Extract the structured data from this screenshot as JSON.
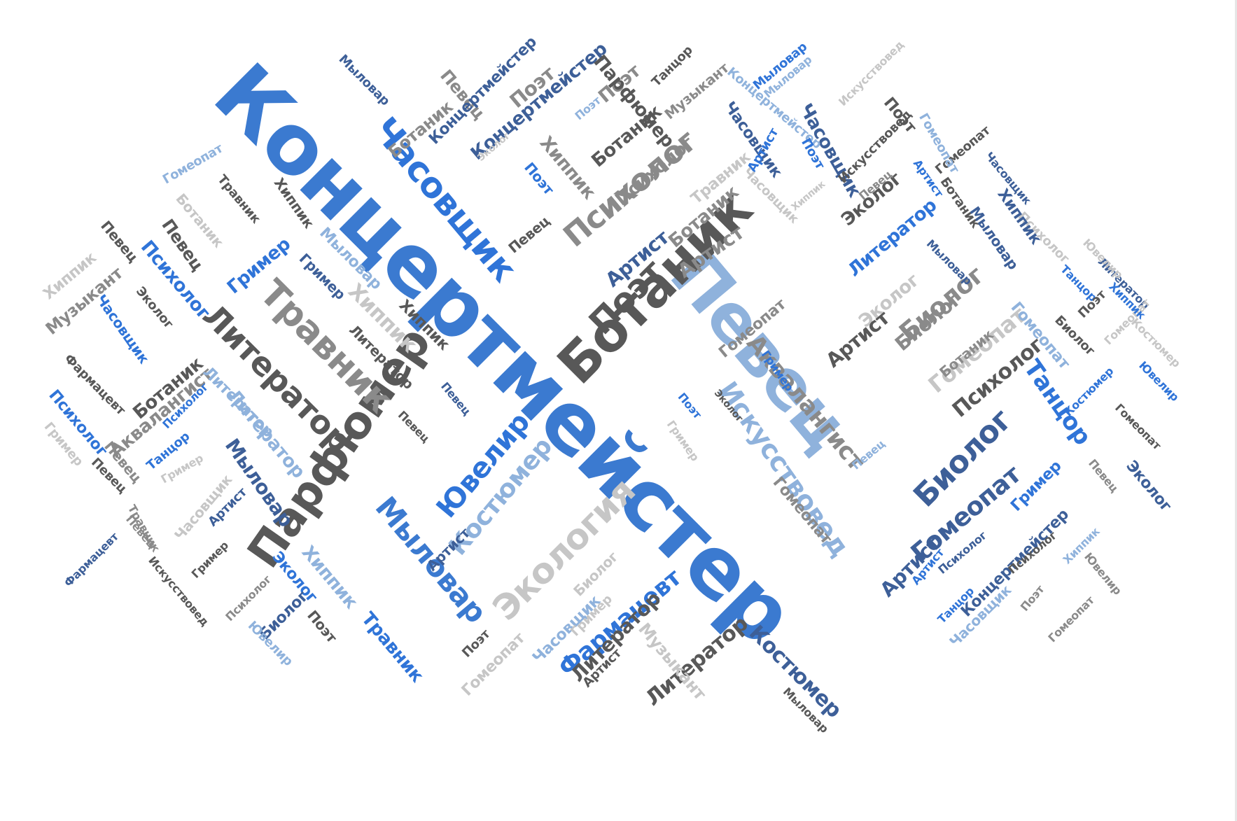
{
  "words": [
    {
      "text": "Концертмейстер",
      "color": "blue"
    },
    {
      "text": "Певец",
      "color": "lightblue"
    },
    {
      "text": "Ботаник",
      "color": "dark"
    },
    {
      "text": "Парфюмер",
      "color": "dark"
    },
    {
      "text": "Часовщик",
      "color": "brightblue"
    },
    {
      "text": "Травник",
      "color": "gray"
    },
    {
      "text": "Литератор",
      "color": "dark"
    },
    {
      "text": "Психолог",
      "color": "gray"
    },
    {
      "text": "Поэт",
      "color": "dark"
    },
    {
      "text": "Ювелир",
      "color": "brightblue"
    },
    {
      "text": "Костюмер",
      "color": "lightblue"
    },
    {
      "text": "Мыловар",
      "color": "blue"
    },
    {
      "text": "Экология",
      "color": "lightgray"
    },
    {
      "text": "Биолог",
      "color": "navy"
    },
    {
      "text": "Искусствовед",
      "color": "lightblue"
    },
    {
      "text": "Аквалангист",
      "color": "gray"
    },
    {
      "text": "Гомеопат",
      "color": "navy"
    },
    {
      "text": "Танцор",
      "color": "brightblue"
    },
    {
      "text": "Биолог",
      "color": "gray"
    },
    {
      "text": "Гомеопат",
      "color": "lightgray"
    },
    {
      "text": "Психолог",
      "color": "dark"
    },
    {
      "text": "Фармацевт",
      "color": "brightblue"
    },
    {
      "text": "Литератор",
      "color": "dark"
    },
    {
      "text": "Костюмер",
      "color": "navy"
    },
    {
      "text": "Концертмейстер",
      "color": "navy"
    },
    {
      "text": "Часовщик",
      "color": "navy"
    },
    {
      "text": "Артист",
      "color": "navy"
    },
    {
      "text": "Артист",
      "color": "gray"
    },
    {
      "text": "Ботаник",
      "color": "gray"
    },
    {
      "text": "Ботаник",
      "color": "dark"
    },
    {
      "text": "Поэт",
      "color": "gray"
    },
    {
      "text": "Хиппик",
      "color": "gray"
    },
    {
      "text": "Эколог",
      "color": "dark"
    },
    {
      "text": "Литератор",
      "color": "brightblue"
    },
    {
      "text": "Эколог",
      "color": "lightgray"
    },
    {
      "text": "Биолог",
      "color": "gray"
    },
    {
      "text": "Гомеопат",
      "color": "gray"
    },
    {
      "text": "Литератор",
      "color": "lightblue"
    },
    {
      "text": "Мыловар",
      "color": "navy"
    },
    {
      "text": "Хиппик",
      "color": "lightgray"
    },
    {
      "text": "Психолог",
      "color": "brightblue"
    },
    {
      "text": "Гример",
      "color": "brightblue"
    },
    {
      "text": "Певец",
      "color": "dark"
    },
    {
      "text": "Хиппик",
      "color": "lightgray"
    },
    {
      "text": "Музыкант",
      "color": "gray"
    },
    {
      "text": "Ботаник",
      "color": "dark"
    },
    {
      "text": "Аквалангист",
      "color": "gray"
    },
    {
      "text": "Психолог",
      "color": "brightblue"
    },
    {
      "text": "Певец",
      "color": "dark"
    },
    {
      "text": "Часовщик",
      "color": "brightblue"
    },
    {
      "text": "Фармацевт",
      "color": "dark"
    },
    {
      "text": "Эколог",
      "color": "dark"
    },
    {
      "text": "Певец",
      "color": "gray"
    },
    {
      "text": "Ботаник",
      "color": "lightgray"
    },
    {
      "text": "Травник",
      "color": "dark"
    },
    {
      "text": "Гомеопат",
      "color": "lightblue"
    },
    {
      "text": "Хиппик",
      "color": "dark"
    },
    {
      "text": "Гример",
      "color": "navy"
    },
    {
      "text": "Мыловар",
      "color": "lightblue"
    },
    {
      "text": "Хиппик",
      "color": "dark"
    },
    {
      "text": "Литератор",
      "color": "dark"
    },
    {
      "text": "Мыловар",
      "color": "navy"
    },
    {
      "text": "Мыловар",
      "color": "brightblue"
    },
    {
      "text": "Гример",
      "color": "lightgray"
    },
    {
      "text": "Танцор",
      "color": "brightblue"
    },
    {
      "text": "Психолог",
      "color": "brightblue"
    },
    {
      "text": "Литератор",
      "color": "lightblue"
    },
    {
      "text": "Певец",
      "color": "dark"
    },
    {
      "text": "Гример",
      "color": "lightgray"
    },
    {
      "text": "Часовщик",
      "color": "lightgray"
    },
    {
      "text": "Артист",
      "color": "navy"
    },
    {
      "text": "Певец",
      "color": "gray"
    },
    {
      "text": "Певец",
      "color": "dark"
    },
    {
      "text": "Певец",
      "color": "navy"
    },
    {
      "text": "Травник",
      "color": "gray"
    },
    {
      "text": "Гример",
      "color": "dark"
    },
    {
      "text": "Фармацевт",
      "color": "navy"
    },
    {
      "text": "Искусствовед",
      "color": "dark"
    },
    {
      "text": "Эколог",
      "color": "brightblue"
    },
    {
      "text": "Хиппик",
      "color": "lightblue"
    },
    {
      "text": "Психолог",
      "color": "gray"
    },
    {
      "text": "Биолог",
      "color": "navy"
    },
    {
      "text": "Поэт",
      "color": "dark"
    },
    {
      "text": "Ювелир",
      "color": "lightblue"
    },
    {
      "text": "Травник",
      "color": "brightblue"
    },
    {
      "text": "Артист",
      "color": "navy"
    },
    {
      "text": "Биолог",
      "color": "lightgray"
    },
    {
      "text": "Поэт",
      "color": "dark"
    },
    {
      "text": "Гомеопат",
      "color": "lightgray"
    },
    {
      "text": "Часовщик",
      "color": "lightblue"
    },
    {
      "text": "Гример",
      "color": "lightgray"
    },
    {
      "text": "Литератор",
      "color": "dark"
    },
    {
      "text": "Артист",
      "color": "dark"
    },
    {
      "text": "Музыкант",
      "color": "lightgray"
    },
    {
      "text": "Мыловар",
      "color": "dark"
    },
    {
      "text": "Ботаник",
      "color": "gray"
    },
    {
      "text": "Певец",
      "color": "gray"
    },
    {
      "text": "Поэт",
      "color": "gray"
    },
    {
      "text": "Парфюмер",
      "color": "dark"
    },
    {
      "text": "Танцор",
      "color": "dark"
    },
    {
      "text": "Музыкант",
      "color": "gray"
    },
    {
      "text": "Концертмейстер",
      "color": "lightblue"
    },
    {
      "text": "Мыловар",
      "color": "lightblue"
    },
    {
      "text": "Искусствовед",
      "color": "lightgray"
    },
    {
      "text": "Поэт",
      "color": "dark"
    },
    {
      "text": "Часовщик",
      "color": "navy"
    },
    {
      "text": "Поэт",
      "color": "brightblue"
    },
    {
      "text": "Артист",
      "color": "brightblue"
    },
    {
      "text": "Концертмейстер",
      "color": "navy"
    },
    {
      "text": "Поэт",
      "color": "lightblue"
    },
    {
      "text": "Эколог",
      "color": "lightgray"
    },
    {
      "text": "Поэт",
      "color": "brightblue"
    },
    {
      "text": "Хиппик",
      "color": "lightgray"
    },
    {
      "text": "Ботаник",
      "color": "dark"
    },
    {
      "text": "Психолог",
      "color": "gray"
    },
    {
      "text": "Артист",
      "color": "brightblue"
    },
    {
      "text": "Певец",
      "color": "gray"
    },
    {
      "text": "Травник",
      "color": "lightgray"
    },
    {
      "text": "Часовщик",
      "color": "lightgray"
    },
    {
      "text": "Искусствовед",
      "color": "dark"
    },
    {
      "text": "Гомеопат",
      "color": "dark"
    },
    {
      "text": "Гомеопат",
      "color": "lightblue"
    },
    {
      "text": "Психолог",
      "color": "lightgray"
    },
    {
      "text": "Часовщик",
      "color": "navy"
    },
    {
      "text": "Литератор",
      "color": "navy"
    },
    {
      "text": "Хиппик",
      "color": "navy"
    },
    {
      "text": "Мыловар",
      "color": "navy"
    },
    {
      "text": "Мыловар",
      "color": "navy"
    },
    {
      "text": "Танцор",
      "color": "brightblue"
    },
    {
      "text": "Биолог",
      "color": "dark"
    },
    {
      "text": "Гомеопат",
      "color": "lightblue"
    },
    {
      "text": "Гомеопат",
      "color": "lightgray"
    },
    {
      "text": "Ювелир",
      "color": "lightgray"
    },
    {
      "text": "Хиппик",
      "color": "brightblue"
    },
    {
      "text": "Костюмер",
      "color": "lightgray"
    },
    {
      "text": "Костюмер",
      "color": "brightblue"
    },
    {
      "text": "Ювелир",
      "color": "brightblue"
    },
    {
      "text": "Гомеопат",
      "color": "dark"
    },
    {
      "text": "Певец",
      "color": "gray"
    },
    {
      "text": "Эколог",
      "color": "navy"
    },
    {
      "text": "Гример",
      "color": "brightblue"
    },
    {
      "text": "Хиппик",
      "color": "lightblue"
    },
    {
      "text": "Концертмейстер",
      "color": "navy"
    },
    {
      "text": "Ювелир",
      "color": "gray"
    },
    {
      "text": "Часовщик",
      "color": "lightblue"
    },
    {
      "text": "Танцор",
      "color": "brightblue"
    },
    {
      "text": "Гомеопат",
      "color": "gray"
    },
    {
      "text": "Поэт",
      "color": "gray"
    },
    {
      "text": "Артист",
      "color": "brightblue"
    },
    {
      "text": "Певец",
      "color": "lightblue"
    },
    {
      "text": "Гример",
      "color": "brightblue"
    },
    {
      "text": "Поэт",
      "color": "brightblue"
    },
    {
      "text": "Эколог",
      "color": "dark"
    },
    {
      "text": "Гример",
      "color": "lightgray"
    },
    {
      "text": "Психолог",
      "color": "navy"
    },
    {
      "text": "Артист",
      "color": "dark"
    },
    {
      "text": "Артист",
      "color": "navy"
    },
    {
      "text": "Ботаник",
      "color": "gray"
    },
    {
      "text": "Певец",
      "color": "dark"
    },
    {
      "text": "Поэт",
      "color": "dark"
    },
    {
      "text": "Психолог",
      "color": "dark"
    },
    {
      "text": "Гомеопат",
      "color": "gray"
    }
  ]
}
